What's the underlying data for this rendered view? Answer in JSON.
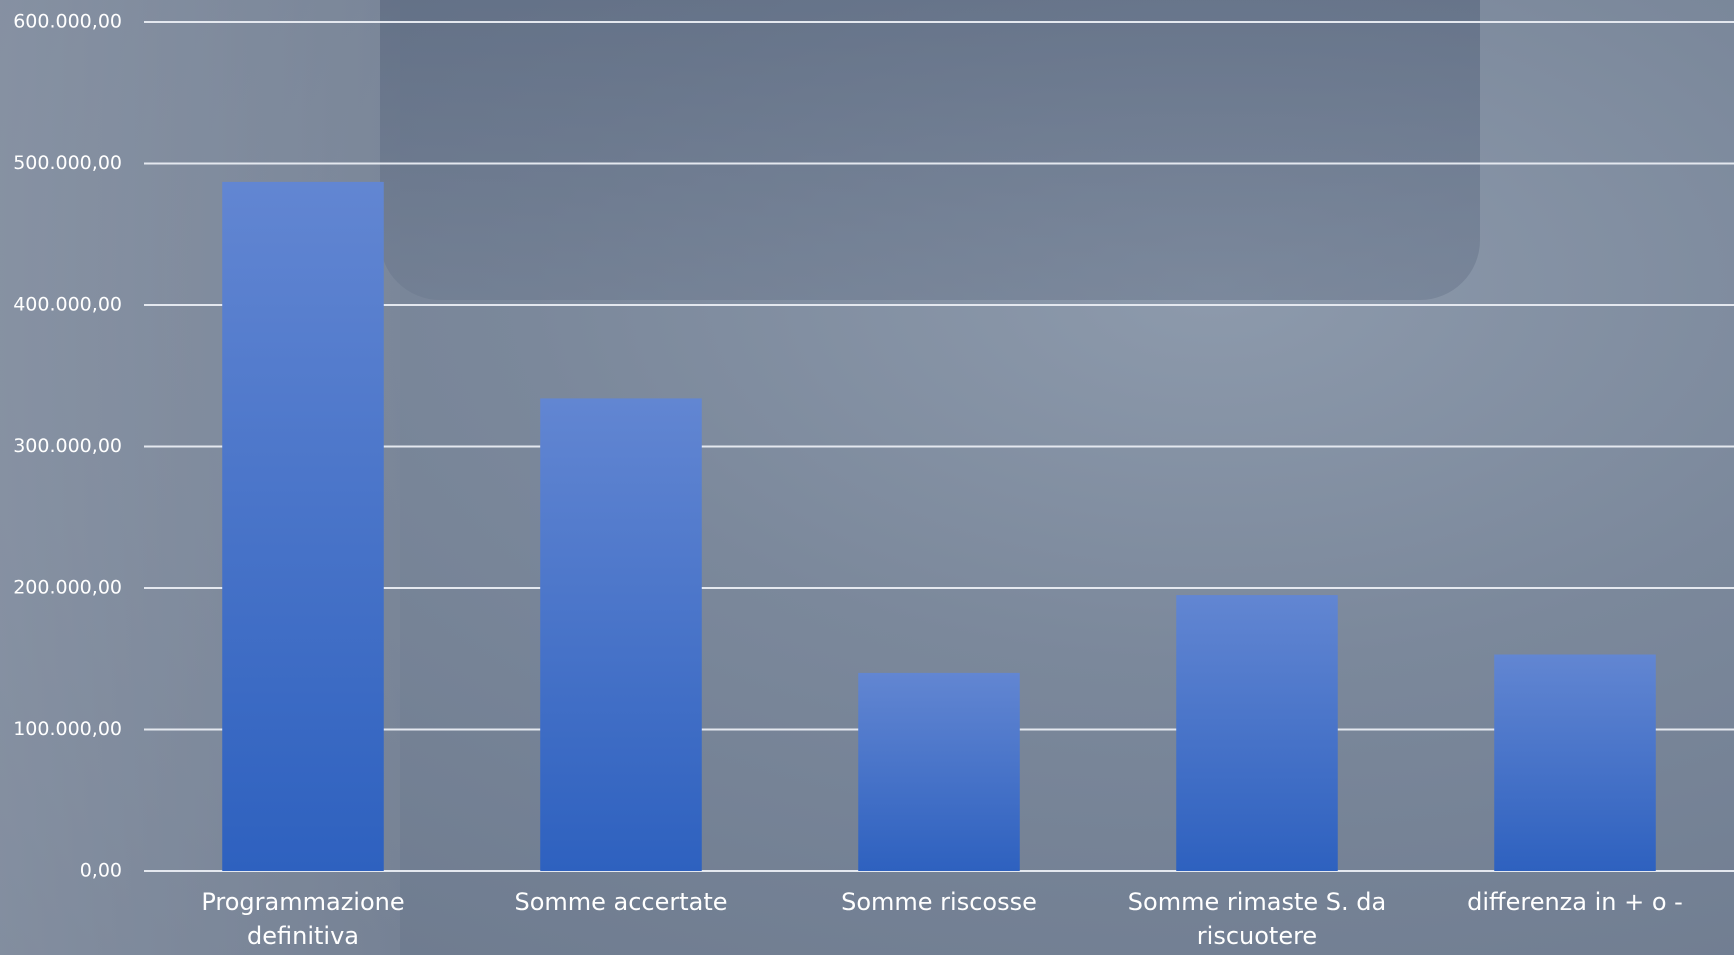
{
  "chart_data": {
    "type": "bar",
    "categories": [
      "Programmazione definitiva",
      "Somme accertate",
      "Somme riscosse",
      "Somme rimaste S. da riscuotere",
      "differenza in + o -"
    ],
    "values": [
      487000,
      334000,
      140000,
      195000,
      153000
    ],
    "color": "#3f6fcb",
    "ylim": [
      0,
      600000
    ],
    "yticks": [
      {
        "value": 0,
        "label": "0,00"
      },
      {
        "value": 100000,
        "label": "100.000,00"
      },
      {
        "value": 200000,
        "label": "200.000,00"
      },
      {
        "value": 300000,
        "label": "300.000,00"
      },
      {
        "value": 400000,
        "label": "400.000,00"
      },
      {
        "value": 500000,
        "label": "500.000,00"
      },
      {
        "value": 600000,
        "label": "600.000,00"
      }
    ],
    "grid": true
  }
}
